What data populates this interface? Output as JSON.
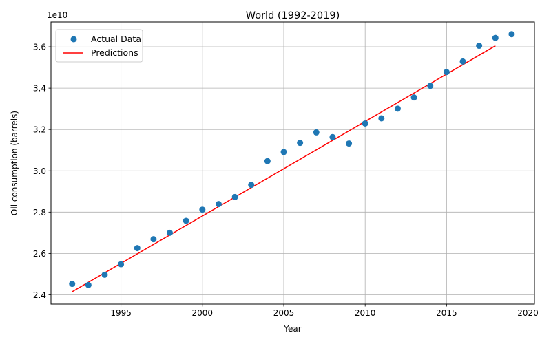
{
  "chart_data": {
    "type": "scatter",
    "title": "World (1992-2019)",
    "xlabel": "Year",
    "ylabel": "Oil consumption (barrels)",
    "offset_text": "1e10",
    "xlim": [
      1990.7,
      2020.4
    ],
    "ylim": [
      2.355,
      3.72
    ],
    "x_ticks": [
      1995,
      2000,
      2005,
      2010,
      2015,
      2020
    ],
    "x_tick_labels": [
      "1995",
      "2000",
      "2005",
      "2010",
      "2015",
      "2020"
    ],
    "y_ticks": [
      2.4,
      2.6,
      2.8,
      3.0,
      3.2,
      3.4,
      3.6
    ],
    "y_tick_labels": [
      "2.4",
      "2.6",
      "2.8",
      "3.0",
      "3.2",
      "3.4",
      "3.6"
    ],
    "grid": true,
    "legend_position": "top-left",
    "series": [
      {
        "name": "Actual Data",
        "kind": "scatter",
        "color": "#1f77b4",
        "points": [
          {
            "x": 1992,
            "y": 2.453
          },
          {
            "x": 1993,
            "y": 2.447
          },
          {
            "x": 1994,
            "y": 2.497
          },
          {
            "x": 1995,
            "y": 2.548
          },
          {
            "x": 1996,
            "y": 2.626
          },
          {
            "x": 1997,
            "y": 2.669
          },
          {
            "x": 1998,
            "y": 2.7
          },
          {
            "x": 1999,
            "y": 2.758
          },
          {
            "x": 2000,
            "y": 2.812
          },
          {
            "x": 2001,
            "y": 2.839
          },
          {
            "x": 2002,
            "y": 2.873
          },
          {
            "x": 2003,
            "y": 2.932
          },
          {
            "x": 2004,
            "y": 3.047
          },
          {
            "x": 2005,
            "y": 3.091
          },
          {
            "x": 2006,
            "y": 3.135
          },
          {
            "x": 2007,
            "y": 3.186
          },
          {
            "x": 2008,
            "y": 3.163
          },
          {
            "x": 2009,
            "y": 3.132
          },
          {
            "x": 2010,
            "y": 3.229
          },
          {
            "x": 2011,
            "y": 3.254
          },
          {
            "x": 2012,
            "y": 3.301
          },
          {
            "x": 2013,
            "y": 3.355
          },
          {
            "x": 2014,
            "y": 3.411
          },
          {
            "x": 2015,
            "y": 3.478
          },
          {
            "x": 2016,
            "y": 3.529
          },
          {
            "x": 2017,
            "y": 3.605
          },
          {
            "x": 2018,
            "y": 3.643
          },
          {
            "x": 2019,
            "y": 3.661
          }
        ]
      },
      {
        "name": "Predictions",
        "kind": "line",
        "color": "#ff0000",
        "points": [
          {
            "x": 1992,
            "y": 2.415
          },
          {
            "x": 2018,
            "y": 3.605
          }
        ]
      }
    ]
  }
}
